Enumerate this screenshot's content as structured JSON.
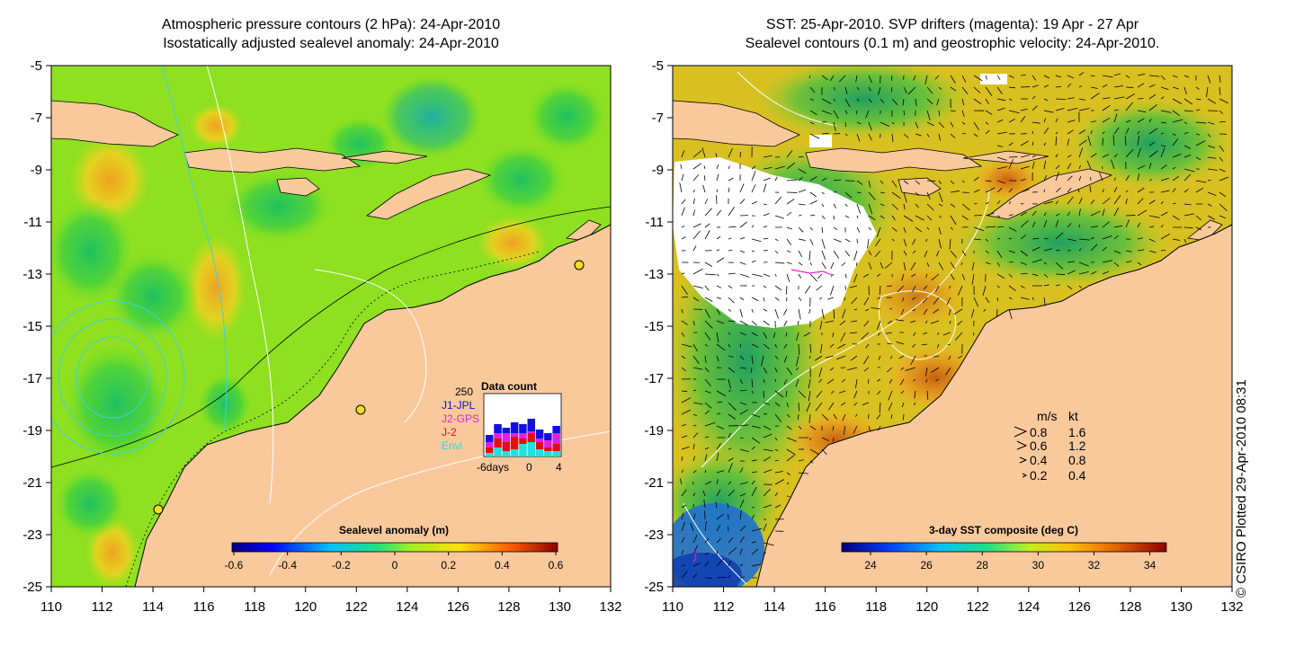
{
  "left_panel": {
    "title_line1": "Atmospheric pressure contours (2 hPa): 24-Apr-2010",
    "title_line2": "Isostatically adjusted sealevel anomaly: 24-Apr-2010",
    "colorbar": {
      "label": "Sealevel anomaly (m)",
      "ticks": [
        "-0.6",
        "-0.4",
        "-0.2",
        "0",
        "0.2",
        "0.4",
        "0.6"
      ]
    },
    "data_count": {
      "title": "Data count",
      "ymax_label": "250",
      "legend": [
        {
          "name": "J1-JPL",
          "color": "#1010e0"
        },
        {
          "name": "J2-GPS",
          "color": "#e020e0"
        },
        {
          "name": "J-2",
          "color": "#e01010"
        },
        {
          "name": "Envi",
          "color": "#20e0e0"
        }
      ],
      "x_ticks": [
        "-6days",
        "0",
        "4"
      ]
    }
  },
  "right_panel": {
    "title_line1": "SST: 25-Apr-2010. SVP drifters (magenta): 19 Apr - 27 Apr",
    "title_line2": "Sealevel contours (0.1 m) and geostrophic velocity: 24-Apr-2010.",
    "colorbar": {
      "label": "3-day SST composite (deg C)",
      "ticks": [
        "24",
        "26",
        "28",
        "30",
        "32",
        "34"
      ]
    },
    "velocity_key": {
      "header_ms": "m/s",
      "header_kt": "kt",
      "rows": [
        {
          "ms": "0.8",
          "kt": "1.6"
        },
        {
          "ms": "0.6",
          "kt": "1.2"
        },
        {
          "ms": "0.4",
          "kt": "0.8"
        },
        {
          "ms": "0.2",
          "kt": "0.4"
        }
      ]
    }
  },
  "axes": {
    "y_ticks": [
      "-5",
      "-7",
      "-9",
      "-11",
      "-13",
      "-15",
      "-17",
      "-19",
      "-21",
      "-23",
      "-25"
    ],
    "x_ticks": [
      "110",
      "112",
      "114",
      "116",
      "118",
      "120",
      "122",
      "124",
      "126",
      "128",
      "130",
      "132"
    ]
  },
  "credit": "© CSIRO Plotted 29-Apr-2010 08:31",
  "colors": {
    "land": "#f9c99c",
    "sea_base": "#8ee020",
    "sst_base": "#e8c020",
    "no_data": "#ffffff"
  }
}
